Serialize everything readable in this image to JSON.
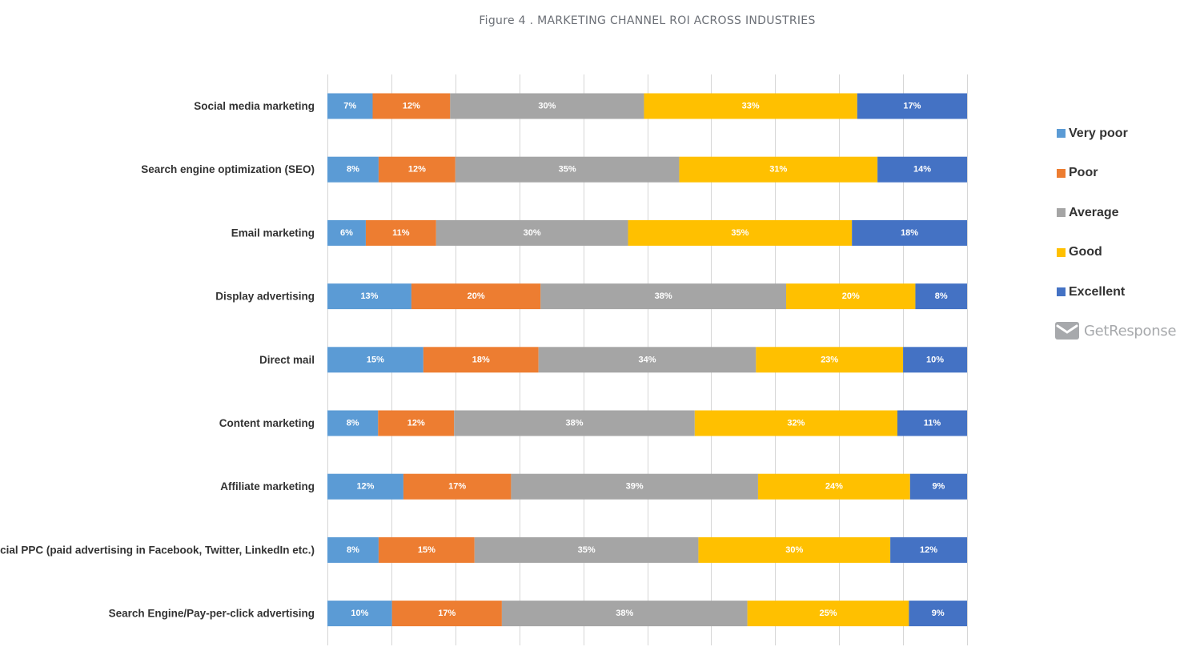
{
  "chart_data": {
    "type": "bar",
    "orientation": "horizontal",
    "stacked": true,
    "title": "Figure 4 . MARKETING CHANNEL ROI ACROSS INDUSTRIES",
    "xlim": [
      0,
      100
    ],
    "grid": true,
    "legend_position": "right",
    "categories": [
      "Social media marketing",
      "Search engine optimization (SEO)",
      "Email marketing",
      "Display advertising",
      "Direct mail",
      "Content marketing",
      "Affiliate marketing",
      "Social PPC (paid advertising in Facebook, Twitter, LinkedIn etc.)",
      "Search Engine/Pay-per-click advertising"
    ],
    "series": [
      {
        "name": "Very poor",
        "color": "#5b9bd5",
        "values": [
          7,
          8,
          6,
          13,
          15,
          8,
          12,
          8,
          10
        ]
      },
      {
        "name": "Poor",
        "color": "#ed7d31",
        "values": [
          12,
          12,
          11,
          20,
          18,
          12,
          17,
          15,
          17
        ]
      },
      {
        "name": "Average",
        "color": "#a5a5a5",
        "values": [
          30,
          35,
          30,
          38,
          34,
          38,
          39,
          35,
          38
        ]
      },
      {
        "name": "Good",
        "color": "#ffc000",
        "values": [
          33,
          31,
          35,
          20,
          23,
          32,
          24,
          30,
          25
        ]
      },
      {
        "name": "Excellent",
        "color": "#4472c4",
        "values": [
          17,
          14,
          18,
          8,
          10,
          11,
          9,
          12,
          9
        ]
      }
    ]
  },
  "brand": {
    "name": "GetResponse",
    "icon": "envelope-icon",
    "color": "#a7a9ac"
  }
}
